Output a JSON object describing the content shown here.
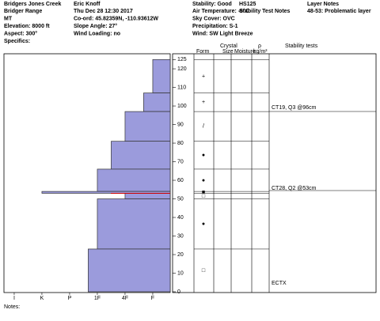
{
  "header": {
    "columns": [
      [
        "Bridgers Jones Creek",
        "Bridger Range",
        "MT",
        "Elevation: 8000 ft",
        "Aspect: 300°",
        "Specifics:"
      ],
      [
        "Eric Knoff",
        "Thu Dec 28 12:30 2017",
        "Co-ord: 45.82359N, -110.93612W",
        "Slope Angle: 27°",
        "Wind Loading: no"
      ],
      [
        "Stability: Good",
        "Air Temperature: -6°C",
        "Sky Cover: OVC",
        "Precipitation: S-1",
        "Wind:  SW Light Breeze"
      ],
      [
        "HS125",
        "Stability Test Notes"
      ],
      [
        "Layer Notes",
        "48-53: Problematic layer"
      ]
    ]
  },
  "columns": {
    "form": "Form",
    "crystal": "Crystal",
    "size": "Size",
    "moisture": "Moisture",
    "rho": "ρ",
    "density_unit": "kg/m³",
    "stability": "Stability tests"
  },
  "profile": {
    "ylim": [
      0,
      125
    ],
    "yticks": [
      0,
      10,
      20,
      30,
      40,
      50,
      60,
      70,
      80,
      90,
      100,
      110,
      120,
      125
    ],
    "xlim": [
      6.37,
      0.37
    ],
    "xticks": [
      {
        "value": 6,
        "label": "I"
      },
      {
        "value": 5,
        "label": "K"
      },
      {
        "value": 4,
        "label": "P"
      },
      {
        "value": 3,
        "label": "1F"
      },
      {
        "value": 2,
        "label": "4F"
      },
      {
        "value": 1,
        "label": "F"
      }
    ],
    "color": "#9b9bdc",
    "problem_layer_cm": 53,
    "layers": [
      {
        "top": 125,
        "bottom": 107,
        "hardness": 1,
        "form": "+"
      },
      {
        "top": 107,
        "bottom": 97,
        "hardness": 1.33,
        "form": "+"
      },
      {
        "top": 97,
        "bottom": 81,
        "hardness": 2,
        "form": "/"
      },
      {
        "top": 81,
        "bottom": 66,
        "hardness": 2.5,
        "form": "●"
      },
      {
        "top": 66,
        "bottom": 54,
        "hardness": 3,
        "form": "●"
      },
      {
        "top": 54,
        "bottom": 53,
        "hardness": 5,
        "form": "■"
      },
      {
        "top": 53,
        "bottom": 50,
        "hardness": 2,
        "form": "□"
      },
      {
        "top": 50,
        "bottom": 23,
        "hardness": 3,
        "form": "●"
      },
      {
        "top": 23,
        "bottom": 0,
        "hardness": 3.33,
        "form": "□"
      }
    ]
  },
  "stability_tests": [
    "CT19, Q3 @96cm",
    "CT28, Q2 @53cm",
    "ECTX"
  ],
  "notes": "Notes:"
}
